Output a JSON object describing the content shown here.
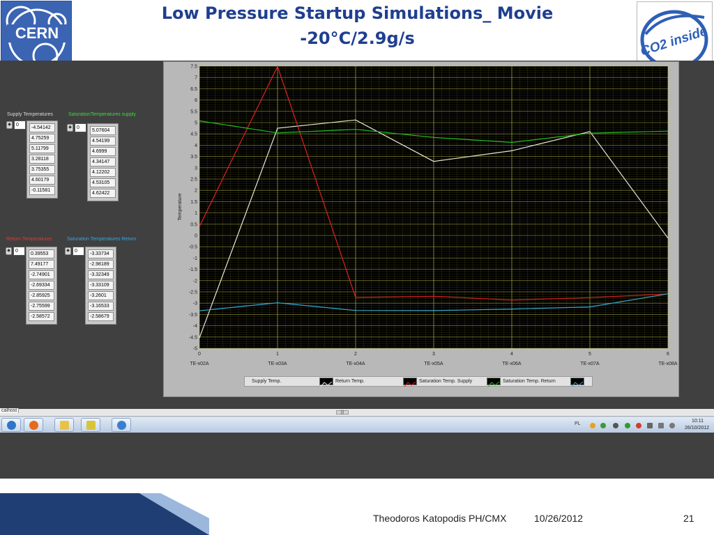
{
  "header": {
    "title_line1": "Low Pressure Startup Simulations_ Movie",
    "title_line2": "-20°C/2.9g/s",
    "cern_logo_text": "CERN",
    "co2_logo_text": "CO2 inside"
  },
  "arrays": [
    {
      "id": "supply",
      "label": "Supply Temperatures",
      "label_color": "#d8d8d8",
      "index": "0",
      "values": [
        "-4.54142",
        "4.75259",
        "5.11799",
        "3.28118",
        "3.75355",
        "4.60179",
        "-0.11581"
      ]
    },
    {
      "id": "sat-supply",
      "label": "SaturationTemperatures supply",
      "label_color": "#3ddc3d",
      "index": "0",
      "values": [
        "5.07604",
        "4.54199",
        "4.6999",
        "4.34147",
        "4.12202",
        "4.53105",
        "4.62422"
      ]
    },
    {
      "id": "return",
      "label": "Return Temperatures",
      "label_color": "#e23b2e",
      "index": "0",
      "values": [
        "0.39553",
        "7.49177",
        "-2.74901",
        "-2.69334",
        "-2.85925",
        "-2.75599",
        "-2.58572"
      ]
    },
    {
      "id": "sat-return",
      "label": "Saturation Temperatures Return",
      "label_color": "#33a6e8",
      "index": "0",
      "values": [
        "-3.33734",
        "-2.98189",
        "-3.32349",
        "-3.33109",
        "-3.2601",
        "-3.16533",
        "-2.58679"
      ]
    }
  ],
  "chart_data": {
    "type": "line",
    "x": [
      0,
      1,
      2,
      3,
      4,
      5,
      6
    ],
    "x_tick_labels": [
      "TE-x02A",
      "TE-x03A",
      "TE-x04A",
      "TE-x05A",
      "TE-x06A",
      "TE-x07A",
      "TE-x08A"
    ],
    "xlim": [
      0,
      6
    ],
    "ylim": [
      -5,
      7.5
    ],
    "y_ticks": [
      7.5,
      7,
      6.5,
      6,
      5.5,
      5,
      4.5,
      4,
      3.5,
      3,
      2.5,
      2,
      1.5,
      1,
      0.5,
      0,
      -0.5,
      -1,
      -1.5,
      -2,
      -2.5,
      -3,
      -3.5,
      -4,
      -4.5,
      -5
    ],
    "ylabel": "Temperature",
    "grid": true,
    "plot_bg": "#000000",
    "grid_color": "#c8c850",
    "legend_position": "bottom",
    "series": [
      {
        "name": "Supply Temp.",
        "color": "#e8e8d8",
        "values": [
          -4.54142,
          4.75259,
          5.11799,
          3.28118,
          3.75355,
          4.60179,
          -0.11581
        ]
      },
      {
        "name": "Return Temp.",
        "color": "#e02020",
        "values": [
          0.39553,
          7.49177,
          -2.74901,
          -2.69334,
          -2.85925,
          -2.75599,
          -2.58572
        ]
      },
      {
        "name": "Saturation Temp. Supply",
        "color": "#20c020",
        "values": [
          5.07604,
          4.54199,
          4.6999,
          4.34147,
          4.12202,
          4.53105,
          4.62422
        ]
      },
      {
        "name": "Saturation Temp. Return",
        "color": "#38a8c8",
        "values": [
          -3.33734,
          -2.98189,
          -3.32349,
          -3.33109,
          -3.2601,
          -3.16533,
          -2.58679
        ]
      }
    ]
  },
  "taskbar": {
    "host_label": "calhost",
    "scroll_thumb": "|||",
    "lang": "PL",
    "clock_time": "10:11",
    "clock_date": "26/10/2012"
  },
  "footer": {
    "author": "Theodoros Katopodis PH/CMX",
    "date": "10/26/2012",
    "page": "21"
  }
}
